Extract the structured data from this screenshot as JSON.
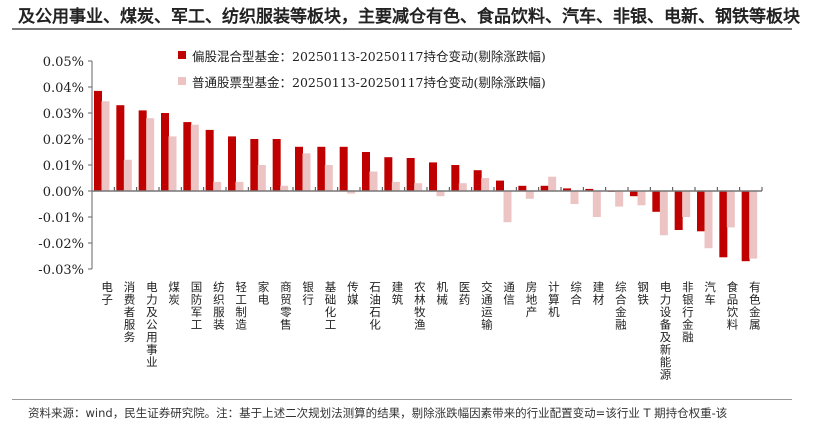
{
  "header": {
    "title": "及公用事业、煤炭、军工、纺织服装等板块，主要减仓有色、食品饮料、汽车、非银、电新、钢铁等板块"
  },
  "footer": {
    "note": "资料来源：wind，民生证券研究院。注：基于上述二次规划法测算的结果，剔除涨跌幅因素带来的行业配置变动=该行业 T 期持仓权重-该"
  },
  "chart_data": {
    "type": "bar",
    "ylim": [
      -0.03,
      0.05
    ],
    "yticks": [
      "0.05%",
      "0.04%",
      "0.03%",
      "0.02%",
      "0.01%",
      "0.00%",
      "-0.01%",
      "-0.02%",
      "-0.03%"
    ],
    "legend_position": "top",
    "grid": false,
    "categories": [
      "电子",
      "消费者服务",
      "电力及公用事业",
      "煤炭",
      "国防军工",
      "纺织服装",
      "轻工制造",
      "家电",
      "商贸零售",
      "银行",
      "基础化工",
      "传媒",
      "石油石化",
      "建筑",
      "农林牧渔",
      "机械",
      "医药",
      "交通运输",
      "通信",
      "房地产",
      "计算机",
      "综合",
      "建材",
      "综合金融",
      "钢铁",
      "电力设备及新能源",
      "非银行金融",
      "汽车",
      "食品饮料",
      "有色金属"
    ],
    "series": [
      {
        "name": "偏股混合型基金：20250113-20250117持仓变动(剔除涨跌幅)",
        "color": "#c00000",
        "values": [
          0.0385,
          0.033,
          0.031,
          0.03,
          0.0265,
          0.0235,
          0.021,
          0.02,
          0.02,
          0.017,
          0.017,
          0.017,
          0.015,
          0.013,
          0.0127,
          0.011,
          0.01,
          0.008,
          0.004,
          0.002,
          0.002,
          0.001,
          0.0008,
          -0.0002,
          -0.002,
          -0.008,
          -0.015,
          -0.0155,
          -0.0255,
          -0.027
        ]
      },
      {
        "name": "普通股票型基金：20250113-20250117持仓变动(剔除涨跌幅)",
        "color": "#ecc4c4",
        "values": [
          0.0345,
          0.012,
          0.028,
          0.021,
          0.0255,
          0.0035,
          0.0035,
          0.01,
          0.002,
          0.0145,
          0.01,
          -0.001,
          0.0075,
          0.0035,
          0.003,
          -0.002,
          0.003,
          0.005,
          -0.012,
          -0.003,
          0.0055,
          -0.005,
          -0.01,
          -0.006,
          -0.0055,
          -0.017,
          -0.01,
          -0.022,
          -0.014,
          -0.026
        ]
      }
    ]
  }
}
